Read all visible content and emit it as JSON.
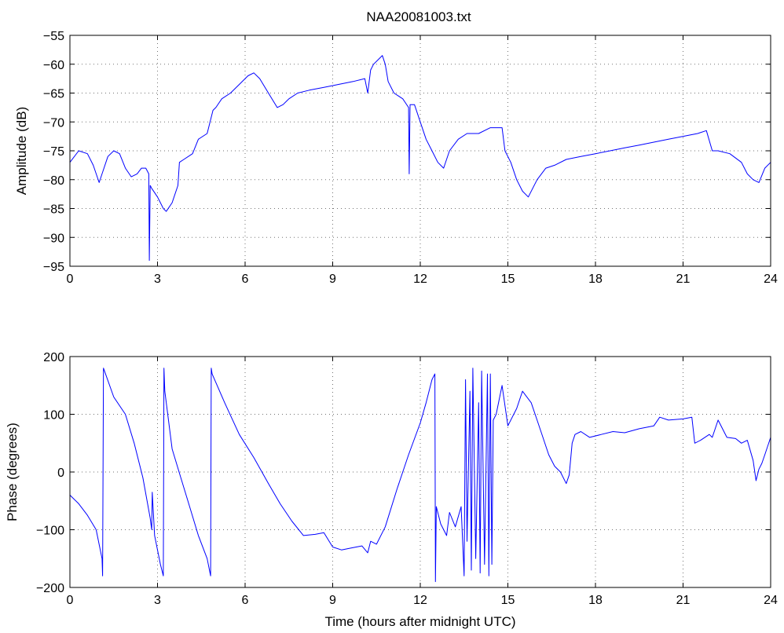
{
  "title": "NAA20081003.txt",
  "chart_data": [
    {
      "type": "line",
      "title": "NAA20081003.txt",
      "xlabel": "",
      "ylabel": "Amplitude (dB)",
      "xlim": [
        0,
        24
      ],
      "ylim": [
        -95,
        -55
      ],
      "xticks": [
        0,
        3,
        6,
        9,
        12,
        15,
        18,
        21,
        24
      ],
      "yticks": [
        -95,
        -90,
        -85,
        -80,
        -75,
        -70,
        -65,
        -60,
        -55
      ],
      "grid": true,
      "series": [
        {
          "color": "#0000ff",
          "x": [
            0,
            0.3,
            0.6,
            0.8,
            1.0,
            1.1,
            1.3,
            1.5,
            1.7,
            1.9,
            2.1,
            2.3,
            2.45,
            2.6,
            2.7,
            2.72,
            2.75,
            2.8,
            3.0,
            3.2,
            3.3,
            3.5,
            3.7,
            3.75,
            3.9,
            4.2,
            4.4,
            4.7,
            4.9,
            5.0,
            5.2,
            5.5,
            5.8,
            6.1,
            6.3,
            6.5,
            6.8,
            7.1,
            7.3,
            7.5,
            7.8,
            8.2,
            8.7,
            9.2,
            9.7,
            10.1,
            10.2,
            10.3,
            10.4,
            10.6,
            10.7,
            10.8,
            10.9,
            11.1,
            11.4,
            11.6,
            11.62,
            11.65,
            11.8,
            12.0,
            12.2,
            12.4,
            12.6,
            12.8,
            13.0,
            13.3,
            13.6,
            14.0,
            14.4,
            14.8,
            14.9,
            15.1,
            15.3,
            15.5,
            15.7,
            16.0,
            16.3,
            16.6,
            17.0,
            17.5,
            18.0,
            18.5,
            19.0,
            19.5,
            20.0,
            20.5,
            21.0,
            21.5,
            21.8,
            22.0,
            22.2,
            22.6,
            23.0,
            23.2,
            23.4,
            23.6,
            23.8,
            24.0
          ],
          "y": [
            -77,
            -75,
            -75.5,
            -77.5,
            -80.5,
            -79,
            -76,
            -75,
            -75.5,
            -78,
            -79.5,
            -79,
            -78,
            -78,
            -79,
            -94,
            -81,
            -81.5,
            -83,
            -85,
            -85.5,
            -84,
            -81,
            -77,
            -76.5,
            -75.5,
            -73,
            -72,
            -68,
            -67.5,
            -66,
            -65,
            -63.5,
            -62,
            -61.5,
            -62.5,
            -65,
            -67.5,
            -67,
            -66,
            -65,
            -64.5,
            -64,
            -63.5,
            -63,
            -62.5,
            -65,
            -61,
            -60,
            -59,
            -58.5,
            -60,
            -63,
            -65,
            -66,
            -67.5,
            -79,
            -67,
            -67,
            -70,
            -73,
            -75,
            -77,
            -78,
            -75,
            -73,
            -72,
            -72,
            -71,
            -71,
            -75,
            -77,
            -80,
            -82,
            -83,
            -80,
            -78,
            -77.5,
            -76.5,
            -76,
            -75.5,
            -75,
            -74.5,
            -74,
            -73.5,
            -73,
            -72.5,
            -72,
            -71.5,
            -75,
            -75,
            -75.5,
            -77,
            -79,
            -80,
            -80.5,
            -78,
            -77
          ]
        }
      ]
    },
    {
      "type": "line",
      "title": "",
      "xlabel": "Time (hours after midnight UTC)",
      "ylabel": "Phase (degrees)",
      "xlim": [
        0,
        24
      ],
      "ylim": [
        -200,
        200
      ],
      "xticks": [
        0,
        3,
        6,
        9,
        12,
        15,
        18,
        21,
        24
      ],
      "yticks": [
        -200,
        -100,
        0,
        100,
        200
      ],
      "grid": true,
      "series": [
        {
          "color": "#0000ff",
          "x": [
            0,
            0.3,
            0.6,
            0.9,
            1.1,
            1.12,
            1.15,
            1.5,
            1.9,
            2.2,
            2.5,
            2.75,
            2.8,
            2.82,
            2.9,
            3.1,
            3.2,
            3.22,
            3.25,
            3.5,
            3.8,
            4.1,
            4.4,
            4.7,
            4.82,
            4.84,
            4.87,
            5.3,
            5.8,
            6.3,
            6.8,
            7.2,
            7.6,
            8.0,
            8.4,
            8.7,
            9.0,
            9.3,
            9.6,
            10.0,
            10.2,
            10.3,
            10.5,
            10.8,
            11.2,
            11.6,
            12.0,
            12.2,
            12.4,
            12.5,
            12.52,
            12.55,
            12.7,
            12.9,
            13.0,
            13.2,
            13.4,
            13.5,
            13.55,
            13.6,
            13.7,
            13.75,
            13.8,
            13.9,
            14.0,
            14.05,
            14.1,
            14.2,
            14.3,
            14.35,
            14.4,
            14.45,
            14.5,
            14.6,
            14.8,
            15.0,
            15.3,
            15.5,
            15.8,
            16.0,
            16.2,
            16.4,
            16.6,
            16.8,
            17.0,
            17.1,
            17.2,
            17.3,
            17.5,
            17.8,
            18.2,
            18.6,
            19.0,
            19.5,
            20.0,
            20.2,
            20.5,
            21.0,
            21.3,
            21.4,
            21.6,
            21.9,
            22.0,
            22.2,
            22.5,
            22.8,
            23.0,
            23.2,
            23.4,
            23.5,
            23.6,
            23.7,
            23.8,
            24.0
          ],
          "y": [
            -40,
            -55,
            -75,
            -100,
            -150,
            -180,
            180,
            130,
            100,
            50,
            -10,
            -80,
            -100,
            -35,
            -110,
            -160,
            -180,
            180,
            140,
            40,
            -10,
            -60,
            -110,
            -150,
            -180,
            180,
            170,
            120,
            65,
            25,
            -20,
            -55,
            -85,
            -110,
            -108,
            -105,
            -130,
            -135,
            -132,
            -128,
            -140,
            -120,
            -125,
            -95,
            -30,
            30,
            85,
            120,
            160,
            170,
            -190,
            -60,
            -90,
            -110,
            -70,
            -95,
            -60,
            -180,
            160,
            -120,
            140,
            -170,
            180,
            -150,
            120,
            -175,
            175,
            -160,
            170,
            -180,
            170,
            -160,
            90,
            100,
            150,
            80,
            110,
            140,
            120,
            90,
            60,
            30,
            10,
            0,
            -20,
            -5,
            50,
            65,
            70,
            60,
            65,
            70,
            68,
            75,
            80,
            95,
            90,
            92,
            95,
            50,
            55,
            65,
            60,
            90,
            60,
            58,
            50,
            55,
            20,
            -15,
            5,
            15,
            30,
            60
          ]
        }
      ]
    }
  ]
}
